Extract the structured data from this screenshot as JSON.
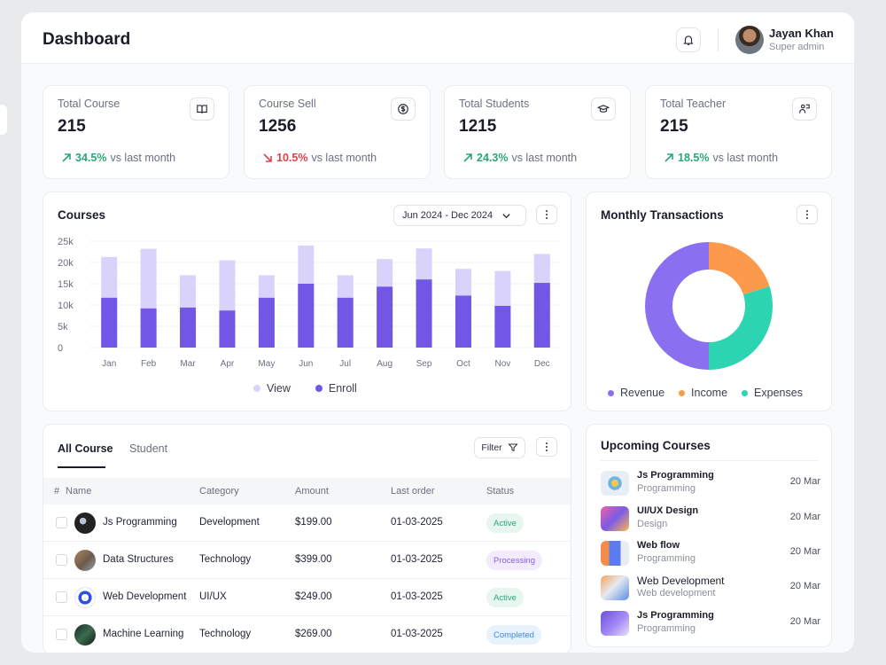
{
  "header": {
    "title": "Dashboard",
    "user_name": "Jayan Khan",
    "user_role": "Super admin"
  },
  "stats": [
    {
      "label": "Total Course",
      "value": "215",
      "change": "34.5%",
      "trend": "up",
      "suffix": "vs last month",
      "icon": "book-icon"
    },
    {
      "label": "Course Sell",
      "value": "1256",
      "change": "10.5%",
      "trend": "down",
      "suffix": "vs last month",
      "icon": "dollar-icon"
    },
    {
      "label": "Total Students",
      "value": "1215",
      "change": "24.3%",
      "trend": "up",
      "suffix": "vs last month",
      "icon": "students-icon"
    },
    {
      "label": "Total Teacher",
      "value": "215",
      "change": "18.5%",
      "trend": "up",
      "suffix": "vs last month",
      "icon": "teacher-icon"
    }
  ],
  "courses_chart": {
    "title": "Courses",
    "date_range": "Jun 2024 - Dec 2024"
  },
  "transactions": {
    "title": "Monthly Transactions"
  },
  "chart_data": [
    {
      "type": "bar",
      "title": "Courses",
      "categories": [
        "Jan",
        "Feb",
        "Mar",
        "Apr",
        "May",
        "Jun",
        "Jul",
        "Aug",
        "Sep",
        "Oct",
        "Nov",
        "Dec"
      ],
      "series": [
        {
          "name": "View",
          "values": [
            21300,
            23200,
            17000,
            20500,
            17000,
            24000,
            17000,
            20800,
            23300,
            18500,
            18000,
            22000
          ],
          "color": "#d9d2fb"
        },
        {
          "name": "Enroll",
          "values": [
            11700,
            9200,
            9400,
            8700,
            11700,
            15000,
            11700,
            14300,
            16000,
            12200,
            9800,
            15200
          ],
          "color": "#7257e6"
        }
      ],
      "yticks": [
        "0",
        "5k",
        "10k",
        "15k",
        "20k",
        "25k"
      ],
      "ylim": [
        0,
        25000
      ],
      "stacked": "overlay",
      "legend": "bottom"
    },
    {
      "type": "pie",
      "title": "Monthly Transactions",
      "donut": true,
      "series": [
        {
          "name": "Revenue",
          "value": 50,
          "color": "#8a6ff0"
        },
        {
          "name": "Income",
          "value": 20,
          "color": "#fb9a4b"
        },
        {
          "name": "Expenses",
          "value": 30,
          "color": "#2dd4b2"
        }
      ],
      "legend": "bottom"
    }
  ],
  "table": {
    "tabs": [
      "All Course",
      "Student"
    ],
    "filter_label": "Filter",
    "columns": [
      "#",
      "Name",
      "Category",
      "Amount",
      "Last order",
      "Status"
    ],
    "rows": [
      {
        "name": "Js Programming",
        "category": "Development",
        "amount": "$199.00",
        "last_order": "01-03-2025",
        "status": "Active"
      },
      {
        "name": "Data Structures",
        "category": "Technology",
        "amount": "$399.00",
        "last_order": "01-03-2025",
        "status": "Processing"
      },
      {
        "name": "Web Development",
        "category": "UI/UX",
        "amount": "$249.00",
        "last_order": "01-03-2025",
        "status": "Active"
      },
      {
        "name": "Machine Learning",
        "category": "Technology",
        "amount": "$269.00",
        "last_order": "01-03-2025",
        "status": "Completed"
      }
    ]
  },
  "upcoming": {
    "title": "Upcoming Courses",
    "items": [
      {
        "name": "Js Programming",
        "category": "Programming",
        "date": "20 Mar"
      },
      {
        "name": "UI/UX Design",
        "category": "Design",
        "date": "20 Mar"
      },
      {
        "name": "Web flow",
        "category": "Programming",
        "date": "20 Mar"
      },
      {
        "name": "Web Development",
        "category": "Web development",
        "date": "20 Mar"
      },
      {
        "name": "Js Programming",
        "category": "Programming",
        "date": "20 Mar"
      }
    ]
  },
  "colors": {
    "accent": "#7257e6",
    "up": "#2aa776",
    "down": "#e0424d"
  }
}
